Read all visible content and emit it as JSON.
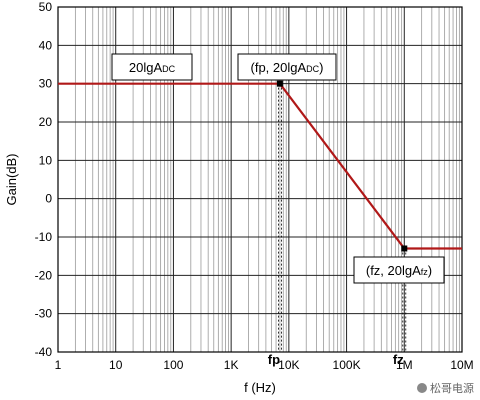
{
  "chart_data": {
    "type": "line",
    "xlabel": "f (Hz)",
    "ylabel": "Gain(dB)",
    "xscale": "log",
    "xlim": [
      1,
      10000000
    ],
    "ylim": [
      -40,
      50
    ],
    "grid": true,
    "x_tick_labels": [
      "1",
      "10",
      "100",
      "1K",
      "10K",
      "100K",
      "1M",
      "10M"
    ],
    "y_tick_labels": [
      "50",
      "40",
      "30",
      "20",
      "10",
      "0",
      "-10",
      "-20",
      "-30",
      "-40"
    ],
    "series": [
      {
        "color": "#b01818",
        "points": [
          {
            "x": 1,
            "y": 30
          },
          {
            "x": 7000,
            "y": 30
          },
          {
            "x": 1000000,
            "y": -13
          },
          {
            "x": 10000000,
            "y": -13
          }
        ]
      }
    ],
    "markers": [
      {
        "label": "fp",
        "x": 7000,
        "y": 30
      },
      {
        "label": "fz",
        "x": 1000000,
        "y": -13
      }
    ],
    "annotations": [
      {
        "text": "20lgADC",
        "main": "20lgA",
        "sub": "DC"
      },
      {
        "text": "(fp, 20lgADC)",
        "main": "(fp, 20lgA",
        "sub": "DC",
        "tail": ")"
      },
      {
        "text": "(fz, 20lgAfz)",
        "main": "(fz, 20lgA",
        "sub": "fz",
        "tail": ")"
      }
    ]
  },
  "watermark": "松哥电源"
}
